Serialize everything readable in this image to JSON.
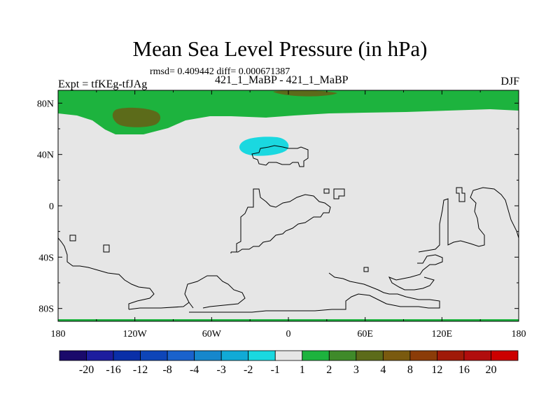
{
  "title": "Mean Sea Level Pressure (in hPa)",
  "subtitle": "rmsd= 0.409442 diff= 0.000671387",
  "left_label": "Expt = tfKEg-tfJAg",
  "center_label": "421_1_MaBP - 421_1_MaBP",
  "right_label": "DJF",
  "axes": {
    "y_ticks": [
      "80N",
      "40N",
      "0",
      "40S",
      "80S"
    ],
    "x_ticks": [
      "180",
      "120W",
      "60W",
      "0",
      "60E",
      "120E",
      "180"
    ]
  },
  "colorbar": {
    "labels": [
      "-20",
      "-16",
      "-12",
      "-8",
      "-4",
      "-3",
      "-2",
      "-1",
      "1",
      "2",
      "3",
      "4",
      "8",
      "12",
      "16",
      "20"
    ],
    "colors": [
      "#1a0a6b",
      "#1d1d9e",
      "#0a2fa8",
      "#0e45b8",
      "#1a62cc",
      "#1687cc",
      "#11aad6",
      "#1ad8e0",
      "#e6e6e6",
      "#1db33e",
      "#3f8a2a",
      "#5c6b1a",
      "#7a5a0f",
      "#8b3c08",
      "#a01a08",
      "#b10d0d",
      "#cc0000"
    ]
  },
  "palette": {
    "background_field": "#e6e6e6",
    "positive_2_4": "#1db33e",
    "positive_3_4": "#5c6b1a",
    "negative_2_1": "#1ad8e0",
    "coastline": "#000000"
  }
}
